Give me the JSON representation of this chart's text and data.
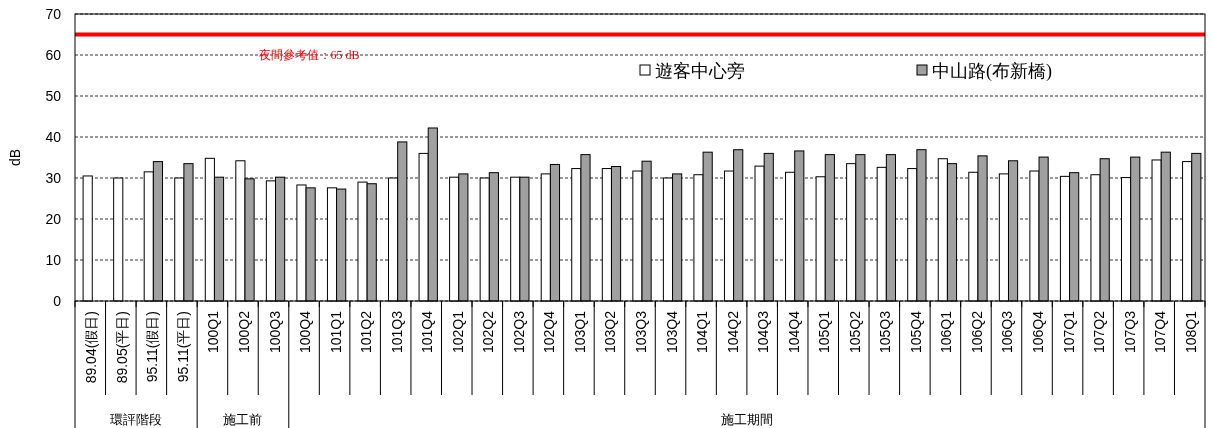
{
  "chart_data": {
    "type": "bar",
    "ylabel": "dB",
    "ylim": [
      0,
      70
    ],
    "yticks": [
      0,
      10,
      20,
      30,
      40,
      50,
      60,
      70
    ],
    "grid": "y",
    "legend": "top right",
    "categories": [
      "89.04(假日)",
      "89.05(平日)",
      "95.11(假日)",
      "95.11(平日)",
      "100Q1",
      "100Q2",
      "100Q3",
      "100Q4",
      "101Q1",
      "101Q2",
      "101Q3",
      "101Q4",
      "102Q1",
      "102Q2",
      "102Q3",
      "102Q4",
      "103Q1",
      "103Q2",
      "103Q3",
      "103Q4",
      "104Q1",
      "104Q2",
      "104Q3",
      "104Q4",
      "105Q1",
      "105Q2",
      "105Q3",
      "105Q4",
      "106Q1",
      "106Q2",
      "106Q3",
      "106Q4",
      "107Q1",
      "107Q2",
      "107Q3",
      "107Q4",
      "108Q1"
    ],
    "series": [
      {
        "name": "遊客中心旁",
        "color": "#ffffff",
        "values": [
          30.5,
          30,
          31.5,
          30,
          34.8,
          34.2,
          29.3,
          28.3,
          27.6,
          29,
          30,
          36,
          30.2,
          30,
          30.2,
          31,
          32.3,
          32.3,
          31.7,
          30,
          30.8,
          31.7,
          32.9,
          31.4,
          30.3,
          33.5,
          32.6,
          32.3,
          34.7,
          31.4,
          31,
          31.7,
          30.4,
          30.8,
          30.1,
          34.4,
          34
        ]
      },
      {
        "name": "中山路(布新橋)",
        "color": "#a0a0a0",
        "values": [
          null,
          null,
          34,
          33.5,
          30.2,
          29.8,
          30.2,
          27.6,
          27.3,
          28.6,
          38.8,
          42.2,
          31,
          31.3,
          30.2,
          33.3,
          35.7,
          32.8,
          34.1,
          31,
          36.3,
          36.9,
          36,
          36.6,
          35.7,
          35.7,
          35.7,
          36.9,
          33.5,
          35.4,
          34.2,
          35.1,
          31.3,
          34.7,
          35.1,
          36.3,
          36
        ]
      }
    ],
    "ref_lines": [
      {
        "axis": "y",
        "value": 65,
        "label": "夜間參考值：65 dB",
        "color": "#ff0000"
      }
    ],
    "annotations": [
      "環評階段",
      "施工前",
      "施工期間"
    ]
  }
}
